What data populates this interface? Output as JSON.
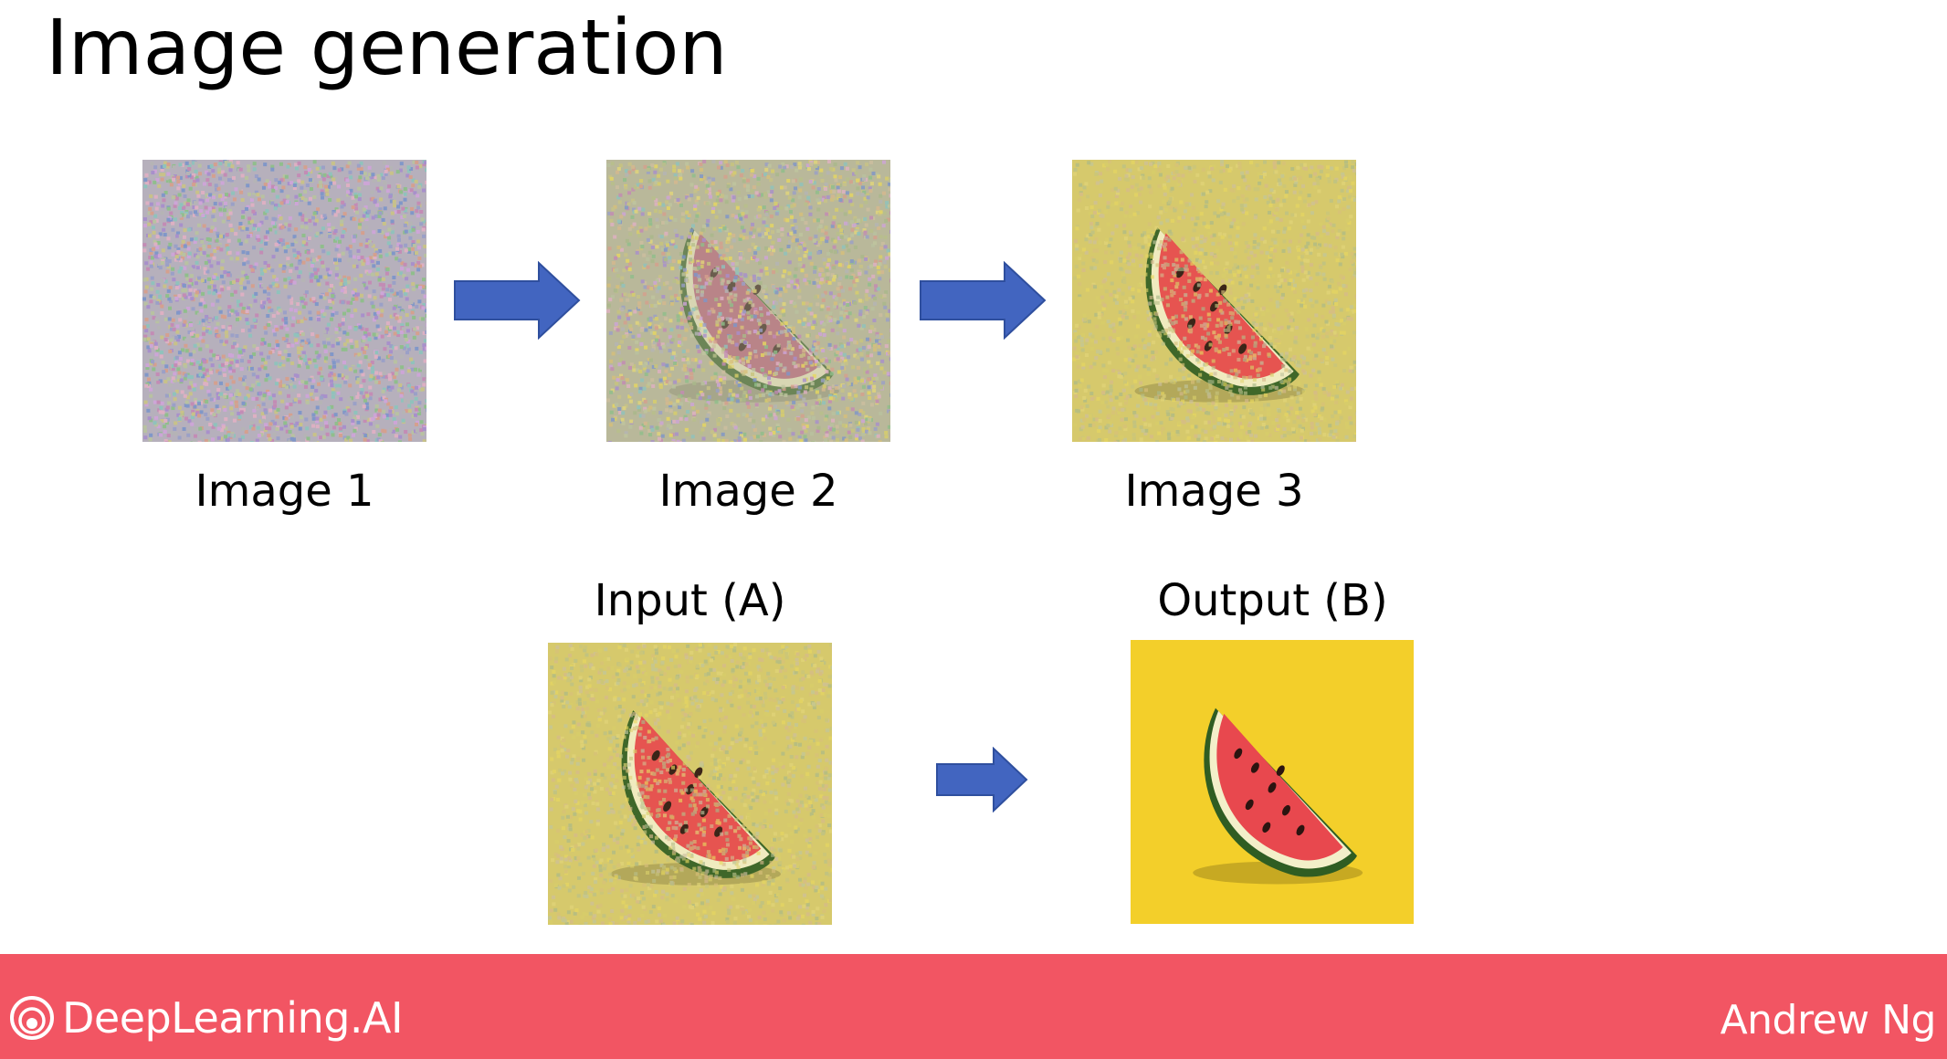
{
  "slide": {
    "title": "Image generation"
  },
  "sequence": {
    "images": [
      {
        "caption": "Image 1",
        "content": "pure noise"
      },
      {
        "caption": "Image 2",
        "content": "noisy watermelon slice"
      },
      {
        "caption": "Image 3",
        "content": "less noisy watermelon slice"
      }
    ]
  },
  "mapping": {
    "input_label": "Input (A)",
    "output_label": "Output (B)"
  },
  "colors": {
    "arrow": "#4265c0",
    "arrow_stroke": "#2f4f9e",
    "footer": "#f25563",
    "footer_text": "#ffffff",
    "watermelon_flesh": "#e8484e",
    "background_yellow": "#f3cf2a"
  },
  "footer": {
    "brand": "DeepLearning.AI",
    "brand_icon": "deeplearning-ai-logo-icon",
    "author": "Andrew Ng"
  }
}
